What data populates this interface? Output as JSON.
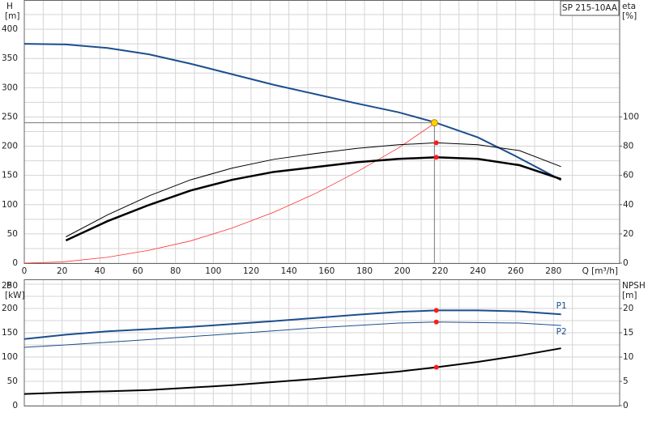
{
  "chart_data": [
    {
      "type": "line",
      "title": "SP 215-10AA",
      "ylabel": "H",
      "yunit": "[m]",
      "y2label": "eta",
      "y2unit": "[%]",
      "xlabel": "Q [m³/h]",
      "xlim": [
        0,
        315
      ],
      "xticks": [
        0,
        20,
        40,
        60,
        80,
        100,
        120,
        140,
        160,
        180,
        200,
        220,
        240,
        260,
        280
      ],
      "ylim": [
        0,
        450
      ],
      "yticks": [
        0,
        50,
        100,
        150,
        200,
        250,
        300,
        350,
        400
      ],
      "y2lim": [
        0,
        180
      ],
      "y2ticks": [
        0,
        20,
        40,
        60,
        80,
        100
      ],
      "grid": true,
      "series": [
        {
          "color": "#1b4f8e",
          "width": 2,
          "x": [
            0,
            22,
            44,
            66,
            88,
            110,
            132,
            154,
            176,
            198,
            217,
            240,
            260,
            284
          ],
          "values": [
            375,
            374,
            368,
            357,
            341,
            323,
            305,
            289,
            273,
            258,
            241,
            215,
            183,
            142
          ]
        },
        {
          "color": "#ff3030",
          "width": 0.8,
          "x": [
            0,
            20,
            44,
            66,
            88,
            110,
            132,
            154,
            176,
            198,
            217
          ],
          "values": [
            0,
            2,
            10,
            22,
            38,
            60,
            87,
            119,
            156,
            197,
            239
          ]
        },
        {
          "color": "#000000",
          "width": 1,
          "axis": "y2",
          "x": [
            22,
            44,
            66,
            88,
            110,
            132,
            154,
            176,
            198,
            218,
            240,
            262,
            284
          ],
          "values": [
            18,
            33,
            46,
            57,
            65,
            71,
            75,
            78.5,
            81,
            82.3,
            81,
            77,
            66
          ]
        },
        {
          "color": "#000000",
          "width": 2.5,
          "axis": "y2",
          "x": [
            22,
            44,
            66,
            88,
            110,
            132,
            154,
            176,
            198,
            218,
            240,
            262,
            284
          ],
          "values": [
            15.5,
            28.7,
            39.8,
            49.7,
            57,
            62.4,
            65.7,
            69,
            71.3,
            72.4,
            71.3,
            67,
            57.5
          ]
        }
      ],
      "duty_point": {
        "x": 217,
        "y": 240,
        "color": "#ffd400"
      },
      "point_color": "#ff1a1a",
      "points": [
        {
          "x": 218,
          "y": 82.3,
          "axis": "y2"
        },
        {
          "x": 218,
          "y": 72.4,
          "axis": "y2"
        }
      ]
    },
    {
      "type": "line",
      "ylabel": "P",
      "yunit": "[kW]",
      "y2label": "NPSH",
      "y2unit": "[m]",
      "xlim": [
        0,
        315
      ],
      "ylim": [
        0,
        260
      ],
      "yticks": [
        0,
        50,
        100,
        150,
        200,
        250
      ],
      "y2lim": [
        0,
        26
      ],
      "y2ticks": [
        0,
        5,
        10,
        15,
        20
      ],
      "grid": true,
      "series": [
        {
          "name": "P1",
          "color": "#1b4f8e",
          "width": 2,
          "x": [
            0,
            22,
            44,
            88,
            132,
            176,
            198,
            218,
            240,
            262,
            284
          ],
          "values": [
            137,
            146,
            153,
            162,
            174,
            187,
            193,
            196,
            196,
            194,
            188
          ]
        },
        {
          "name": "P2",
          "color": "#1b4f8e",
          "width": 1,
          "x": [
            0,
            22,
            66,
            110,
            154,
            198,
            218,
            262,
            284
          ],
          "values": [
            120,
            125,
            136,
            148,
            160,
            170,
            172,
            170,
            165
          ]
        },
        {
          "color": "#000000",
          "width": 2,
          "axis": "y2",
          "x": [
            0,
            22,
            66,
            110,
            154,
            198,
            218,
            240,
            262,
            284
          ],
          "values": [
            2.4,
            2.7,
            3.2,
            4.2,
            5.5,
            7,
            7.9,
            9,
            10.3,
            11.8
          ]
        }
      ],
      "point_color": "#ff1a1a",
      "points": [
        {
          "x": 218,
          "y": 196
        },
        {
          "x": 218,
          "y": 172
        },
        {
          "x": 218,
          "y": 7.9,
          "axis": "y2"
        }
      ]
    }
  ]
}
